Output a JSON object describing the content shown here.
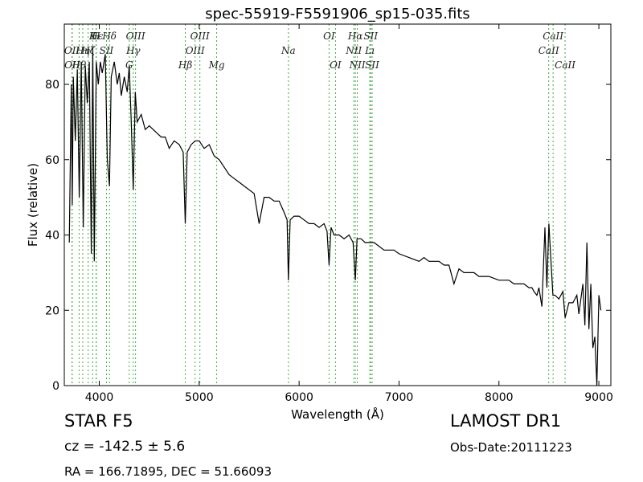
{
  "footer": {
    "class": "STAR   F5",
    "cz": "cz = -142.5  ± 5.6",
    "radec": "RA = 166.71895, DEC = 51.66093",
    "survey": "LAMOST DR1",
    "obsdate": "Obs-Date:20111223"
  },
  "colors": {
    "spectrum": "#000000",
    "lines": "#44aa44",
    "axes": "#000000"
  },
  "chart_data": {
    "type": "line",
    "title": "spec-55919-F5591906_sp15-035.fits",
    "xlabel": "Wavelength (Å)",
    "ylabel": "Flux (relative)",
    "xlim": [
      3650,
      9120
    ],
    "ylim": [
      0,
      96
    ],
    "xticks": [
      4000,
      5000,
      6000,
      7000,
      8000,
      9000
    ],
    "yticks": [
      0,
      20,
      40,
      60,
      80
    ],
    "grid": false,
    "series": [
      {
        "x": [
          3700,
          3720,
          3730,
          3740,
          3760,
          3780,
          3800,
          3820,
          3840,
          3860,
          3880,
          3900,
          3920,
          3935,
          3950,
          3970,
          3990,
          4010,
          4030,
          4060,
          4080,
          4102,
          4120,
          4150,
          4180,
          4200,
          4220,
          4250,
          4280,
          4300,
          4320,
          4340,
          4360,
          4380,
          4420,
          4460,
          4500,
          4540,
          4580,
          4620,
          4660,
          4700,
          4750,
          4800,
          4840,
          4861,
          4880,
          4920,
          4960,
          5000,
          5050,
          5100,
          5150,
          5200,
          5250,
          5300,
          5350,
          5400,
          5450,
          5500,
          5550,
          5600,
          5650,
          5700,
          5750,
          5800,
          5850,
          5880,
          5893,
          5910,
          5950,
          6000,
          6050,
          6100,
          6150,
          6200,
          6250,
          6280,
          6300,
          6320,
          6350,
          6400,
          6450,
          6500,
          6540,
          6563,
          6580,
          6620,
          6660,
          6700,
          6750,
          6800,
          6850,
          6900,
          6950,
          7000,
          7100,
          7200,
          7250,
          7300,
          7350,
          7400,
          7450,
          7500,
          7550,
          7600,
          7650,
          7700,
          7750,
          7800,
          7900,
          8000,
          8100,
          8150,
          8200,
          8250,
          8300,
          8330,
          8350,
          8380,
          8400,
          8430,
          8460,
          8480,
          8500,
          8540,
          8560,
          8600,
          8640,
          8662,
          8700,
          8740,
          8780,
          8800,
          8820,
          8840,
          8860,
          8880,
          8900,
          8920,
          8940,
          8960,
          8980,
          9000,
          9020
        ],
        "y": [
          38,
          80,
          48,
          82,
          65,
          84,
          50,
          86,
          42,
          85,
          75,
          86,
          35,
          90,
          33,
          86,
          80,
          86,
          83,
          88,
          60,
          53,
          82,
          86,
          80,
          83,
          77,
          82,
          78,
          85,
          70,
          52,
          78,
          70,
          72,
          68,
          69,
          68,
          67,
          66,
          66,
          63,
          65,
          64,
          62,
          43,
          62,
          64,
          65,
          65,
          63,
          64,
          61,
          60,
          58,
          56,
          55,
          54,
          53,
          52,
          51,
          43,
          50,
          50,
          49,
          49,
          46,
          44,
          28,
          44,
          45,
          45,
          44,
          43,
          43,
          42,
          43,
          41,
          32,
          42,
          40,
          40,
          39,
          40,
          38,
          28,
          39,
          39,
          38,
          38,
          38,
          37,
          36,
          36,
          36,
          35,
          34,
          33,
          34,
          33,
          33,
          33,
          32,
          32,
          27,
          31,
          30,
          30,
          30,
          29,
          29,
          28,
          28,
          27,
          27,
          27,
          26,
          26,
          25,
          24,
          26,
          21,
          42,
          26,
          43,
          24,
          24,
          23,
          25,
          18,
          22,
          22,
          24,
          19,
          23,
          27,
          16,
          38,
          15,
          27,
          10,
          13,
          0,
          24,
          20
        ]
      }
    ],
    "annotations": [
      {
        "label": "Hϵ",
        "x": 3970,
        "row": 0
      },
      {
        "label": "K",
        "x": 3934,
        "row": 0
      },
      {
        "label": "H",
        "x": 3968,
        "row": 0
      },
      {
        "label": "Hδ",
        "x": 4102,
        "row": 0
      },
      {
        "label": "OIII",
        "x": 4363,
        "row": 0
      },
      {
        "label": "OIII",
        "x": 5007,
        "row": 0
      },
      {
        "label": "OI",
        "x": 6300,
        "row": 0
      },
      {
        "label": "Hα",
        "x": 6563,
        "row": 0
      },
      {
        "label": "SII",
        "x": 6717,
        "row": 0
      },
      {
        "label": "CaII",
        "x": 8542,
        "row": 0
      },
      {
        "label": "OII",
        "x": 3727,
        "row": 1
      },
      {
        "label": "Hη",
        "x": 3835,
        "row": 1
      },
      {
        "label": "Hζ",
        "x": 3889,
        "row": 1
      },
      {
        "label": "SII",
        "x": 4072,
        "row": 1
      },
      {
        "label": "Hγ",
        "x": 4340,
        "row": 1
      },
      {
        "label": "OIII",
        "x": 4959,
        "row": 1
      },
      {
        "label": "Na",
        "x": 5893,
        "row": 1
      },
      {
        "label": "NII",
        "x": 6548,
        "row": 1
      },
      {
        "label": "Lı",
        "x": 6707,
        "row": 1
      },
      {
        "label": "CaII",
        "x": 8498,
        "row": 1
      },
      {
        "label": "OII",
        "x": 3729,
        "row": 2
      },
      {
        "label": "Hθ",
        "x": 3798,
        "row": 2
      },
      {
        "label": "G",
        "x": 4300,
        "row": 2
      },
      {
        "label": "Hβ",
        "x": 4861,
        "row": 2
      },
      {
        "label": "Mg",
        "x": 5175,
        "row": 2
      },
      {
        "label": "OI",
        "x": 6364,
        "row": 2
      },
      {
        "label": "NII",
        "x": 6583,
        "row": 2
      },
      {
        "label": "SII",
        "x": 6731,
        "row": 2
      },
      {
        "label": "CaII",
        "x": 8662,
        "row": 2
      }
    ]
  }
}
